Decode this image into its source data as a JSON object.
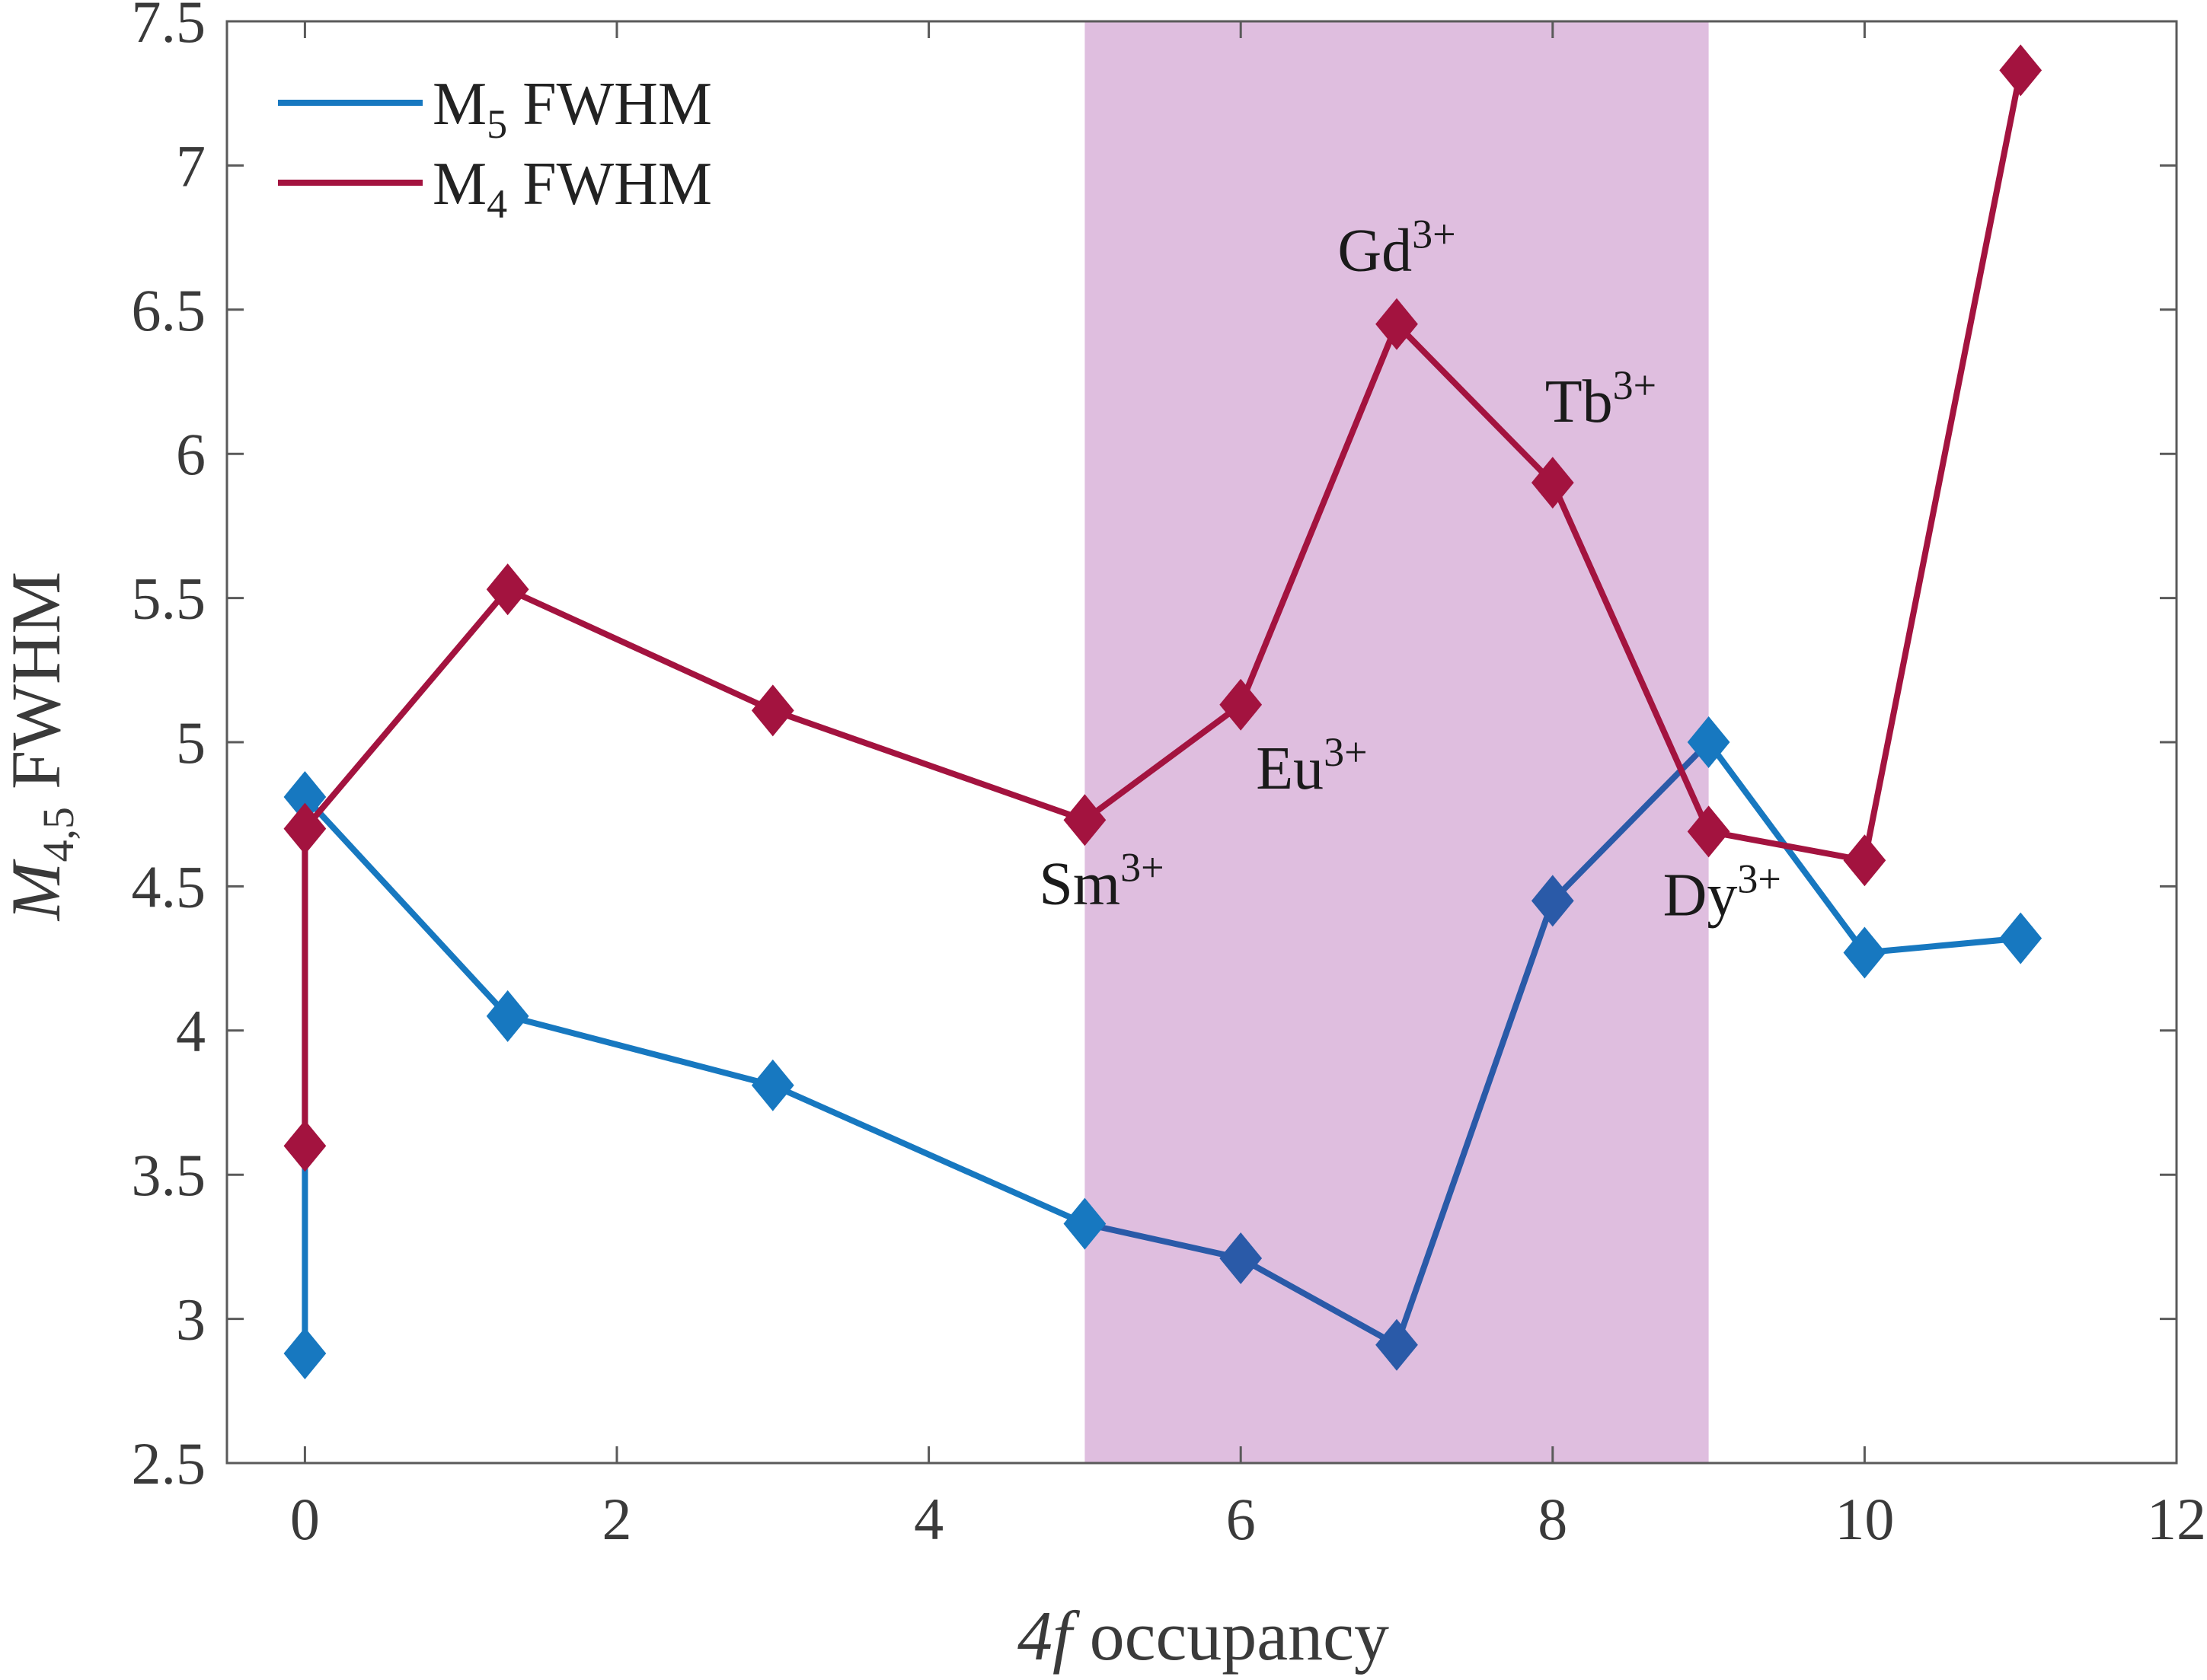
{
  "chart_data": {
    "type": "line",
    "title": "",
    "xlabel": "4f occupancy",
    "ylabel": "M4,5 FWHM",
    "xlim": [
      -0.5,
      12
    ],
    "ylim": [
      2.5,
      7.5
    ],
    "xticks": [
      0,
      2,
      4,
      6,
      8,
      10,
      12
    ],
    "yticks": [
      2.5,
      3,
      3.5,
      4,
      4.5,
      5,
      5.5,
      6,
      6.5,
      7,
      7.5
    ],
    "shaded_region": {
      "x_from": 5,
      "x_to": 9,
      "color": "#dfbedf"
    },
    "series": [
      {
        "name": "M5 FWHM",
        "base": "M",
        "sub": "5",
        "suffix": " FWHM",
        "color": "#1778c0",
        "shaded_color": "#2a5aa8",
        "marker": "diamond",
        "x": [
          0,
          0,
          1.3,
          3,
          5,
          6,
          7,
          8,
          9,
          10,
          11
        ],
        "y": [
          2.88,
          4.81,
          4.05,
          3.81,
          3.33,
          3.21,
          2.91,
          4.45,
          5.0,
          4.27,
          4.32
        ]
      },
      {
        "name": "M4 FWHM",
        "base": "M",
        "sub": "4",
        "suffix": " FWHM",
        "color": "#a3133f",
        "shaded_color": "#a3133f",
        "marker": "diamond",
        "x": [
          0,
          0,
          1.3,
          3,
          5,
          6,
          7,
          8,
          9,
          10,
          11
        ],
        "y": [
          3.6,
          4.7,
          5.53,
          5.11,
          4.73,
          5.13,
          6.45,
          5.9,
          4.69,
          4.59,
          7.33
        ]
      }
    ],
    "annotations": [
      {
        "base": "Gd",
        "sup": "3+",
        "x": 7,
        "y": 6.45,
        "anchor": "above"
      },
      {
        "base": "Tb",
        "sup": "3+",
        "x": 8,
        "y": 5.9,
        "anchor": "above-right"
      },
      {
        "base": "Eu",
        "sup": "3+",
        "x": 6,
        "y": 5.13,
        "anchor": "below-right"
      },
      {
        "base": "Sm",
        "sup": "3+",
        "x": 5,
        "y": 4.73,
        "anchor": "below"
      },
      {
        "base": "Dy",
        "sup": "3+",
        "x": 9,
        "y": 4.69,
        "anchor": "below"
      }
    ],
    "legend_position": "top-left"
  }
}
